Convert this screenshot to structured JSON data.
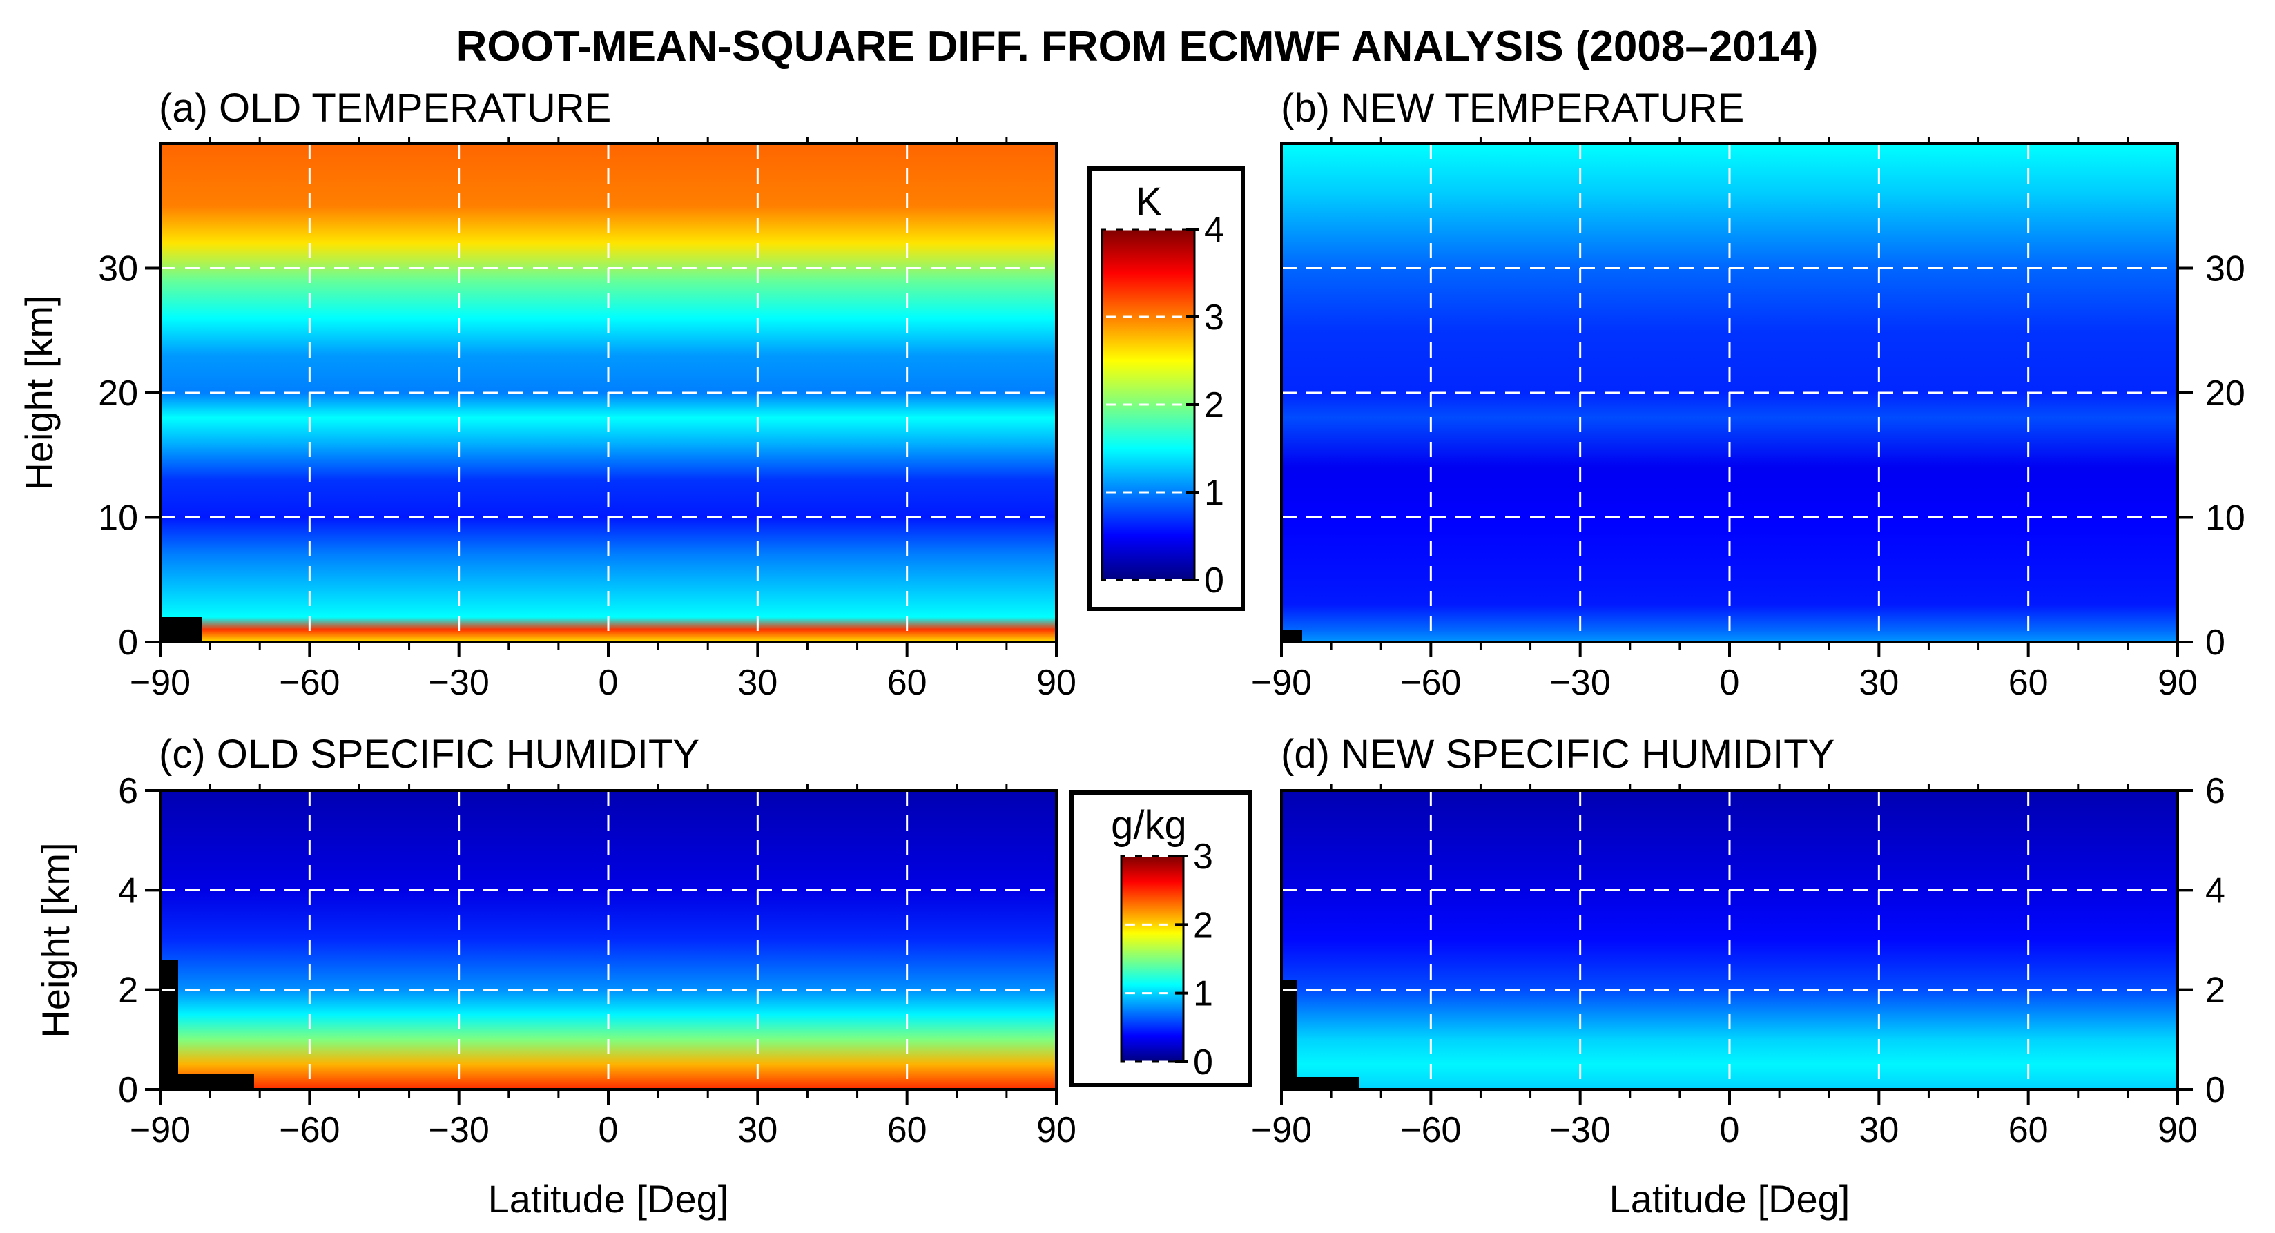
{
  "figure_title": "ROOT-MEAN-SQUARE DIFF. FROM ECMWF ANALYSIS (2008–2014)",
  "chart_data": [
    {
      "type": "heatmap",
      "panel": "a",
      "title": "(a) OLD  TEMPERATURE",
      "xlabel": "",
      "ylabel": "Height [km]",
      "xlim": [
        -90,
        90
      ],
      "ylim": [
        0,
        40
      ],
      "xticks": [
        -90,
        -60,
        -30,
        0,
        30,
        60,
        90
      ],
      "xtick_labels": [
        "−90",
        "−60",
        "−30",
        "0",
        "30",
        "60",
        "90"
      ],
      "yticks": [
        0,
        10,
        20,
        30
      ],
      "ytick_labels": [
        "0",
        "10",
        "20",
        "30"
      ],
      "ylabel_side": "left",
      "grid": true,
      "colorbar": "temperature",
      "profile_heights_km": [
        0,
        1,
        2,
        3,
        5,
        7,
        10,
        13,
        16,
        18,
        20,
        23,
        26,
        29,
        32,
        35,
        40
      ],
      "profile_values": [
        2.6,
        3.3,
        1.5,
        1.4,
        1.2,
        1.0,
        0.6,
        0.7,
        1.2,
        1.5,
        1.0,
        1.1,
        1.5,
        1.9,
        2.6,
        3.0,
        3.1
      ]
    },
    {
      "type": "heatmap",
      "panel": "b",
      "title": "(b) NEW  TEMPERATURE",
      "xlabel": "",
      "ylabel": "",
      "xlim": [
        -90,
        90
      ],
      "ylim": [
        0,
        40
      ],
      "xticks": [
        -90,
        -60,
        -30,
        0,
        30,
        60,
        90
      ],
      "xtick_labels": [
        "−90",
        "−60",
        "−30",
        "0",
        "30",
        "60",
        "90"
      ],
      "yticks": [
        0,
        10,
        20,
        30
      ],
      "ytick_labels": [
        "0",
        "10",
        "20",
        "30"
      ],
      "ylabel_side": "right",
      "grid": true,
      "colorbar": "temperature",
      "profile_heights_km": [
        0,
        1,
        3,
        6,
        10,
        14,
        18,
        20,
        25,
        30,
        33,
        36,
        40
      ],
      "profile_values": [
        1.1,
        0.9,
        0.6,
        0.55,
        0.5,
        0.45,
        0.8,
        0.65,
        0.7,
        0.9,
        1.1,
        1.3,
        1.5
      ]
    },
    {
      "type": "heatmap",
      "panel": "c",
      "title": "(c) OLD  SPECIFIC HUMIDITY",
      "xlabel": "Latitude [Deg]",
      "ylabel": "Height [km]",
      "xlim": [
        -90,
        90
      ],
      "ylim": [
        0,
        6
      ],
      "xticks": [
        -90,
        -60,
        -30,
        0,
        30,
        60,
        90
      ],
      "xtick_labels": [
        "−90",
        "−60",
        "−30",
        "0",
        "30",
        "60",
        "90"
      ],
      "yticks": [
        0,
        2,
        4,
        6
      ],
      "ytick_labels": [
        "0",
        "2",
        "4",
        "6"
      ],
      "ylabel_side": "left",
      "grid": true,
      "colorbar": "humidity",
      "profile_heights_km": [
        0,
        0.5,
        1,
        1.5,
        2,
        3,
        4,
        6
      ],
      "profile_values": [
        2.5,
        2.1,
        1.5,
        1.1,
        0.8,
        0.5,
        0.3,
        0.15
      ]
    },
    {
      "type": "heatmap",
      "panel": "d",
      "title": "(d) NEW  SPECIFIC HUMIDITY",
      "xlabel": "Latitude [Deg]",
      "ylabel": "",
      "xlim": [
        -90,
        90
      ],
      "ylim": [
        0,
        6
      ],
      "xticks": [
        -90,
        -60,
        -30,
        0,
        30,
        60,
        90
      ],
      "xtick_labels": [
        "−90",
        "−60",
        "−30",
        "0",
        "30",
        "60",
        "90"
      ],
      "yticks": [
        0,
        2,
        4,
        6
      ],
      "ytick_labels": [
        "0",
        "2",
        "4",
        "6"
      ],
      "ylabel_side": "right",
      "grid": true,
      "colorbar": "humidity",
      "profile_heights_km": [
        0,
        0.5,
        1,
        1.5,
        2,
        3,
        4,
        6
      ],
      "profile_values": [
        1.0,
        1.1,
        1.0,
        0.8,
        0.6,
        0.4,
        0.3,
        0.15
      ]
    }
  ],
  "colorbars": {
    "temperature": {
      "label": "K",
      "min": 0,
      "max": 4,
      "ticks": [
        0,
        1,
        2,
        3,
        4
      ],
      "tick_labels": [
        "0",
        "1",
        "2",
        "3",
        "4"
      ]
    },
    "humidity": {
      "label": "g/kg",
      "min": 0,
      "max": 3,
      "ticks": [
        0,
        1,
        2,
        3
      ],
      "tick_labels": [
        "0",
        "1",
        "2",
        "3"
      ]
    }
  },
  "colors": {
    "colormap": [
      "#00007f",
      "#0000ff",
      "#007fff",
      "#00ffff",
      "#7fff7f",
      "#ffff00",
      "#ff7f00",
      "#ff0000",
      "#7f0000"
    ],
    "grid": "#ffffff",
    "frame": "#000000"
  }
}
